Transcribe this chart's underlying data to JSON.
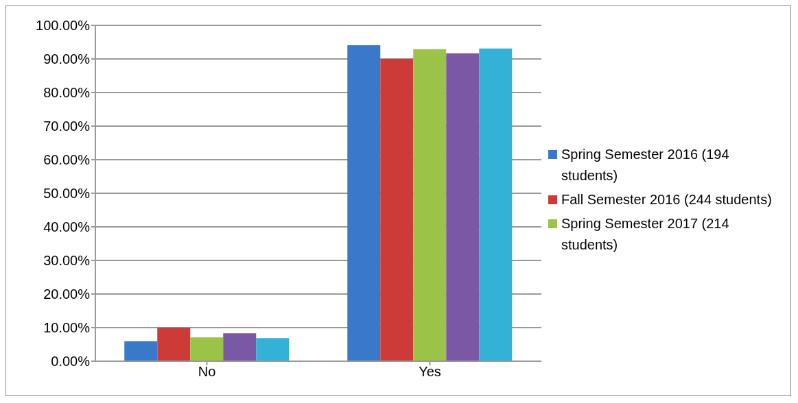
{
  "chart_data": {
    "type": "bar",
    "categories": [
      "No",
      "Yes"
    ],
    "series": [
      {
        "name": "Spring Semester 2016 (194 students)",
        "color": "#3a78c9",
        "values": [
          5.9,
          94.1
        ]
      },
      {
        "name": "Fall Semester 2016 (244 students)",
        "color": "#cc3b37",
        "values": [
          10,
          90
        ]
      },
      {
        "name": "Spring Semester 2017 (214 students)",
        "color": "#9bc348",
        "values": [
          7.1,
          92.9
        ]
      },
      {
        "color": "#7b58a6",
        "values": [
          8.3,
          91.7
        ]
      },
      {
        "color": "#34b1d6",
        "values": [
          6.9,
          93.1
        ]
      }
    ],
    "ylim": [
      0,
      100
    ],
    "yticks": [
      {
        "value": 0,
        "label": "0.00%"
      },
      {
        "value": 10,
        "label": "10.00%"
      },
      {
        "value": 20,
        "label": "20.00%"
      },
      {
        "value": 30,
        "label": "30.00%"
      },
      {
        "value": 40,
        "label": "40.00%"
      },
      {
        "value": 50,
        "label": "50.00%"
      },
      {
        "value": 60,
        "label": "60.00%"
      },
      {
        "value": 70,
        "label": "70.00%"
      },
      {
        "value": 80,
        "label": "80.00%"
      },
      {
        "value": 90,
        "label": "90.00%"
      },
      {
        "value": 100,
        "label": "100.00%"
      }
    ],
    "grid": "y",
    "legend": "right"
  }
}
